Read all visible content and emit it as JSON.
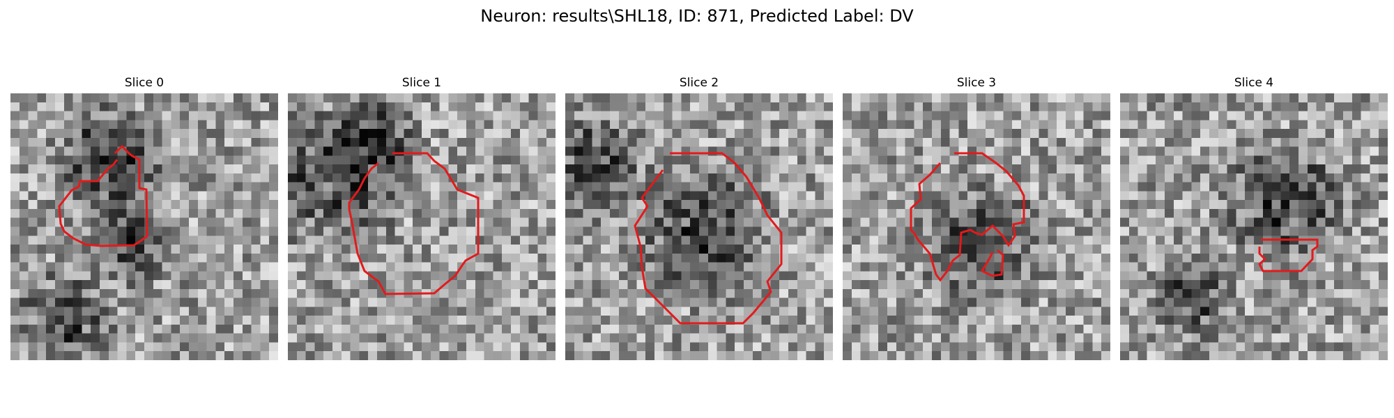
{
  "figure": {
    "title": "Neuron: results\\SHL18, ID: 871, Predicted Label: DV"
  },
  "slices": [
    {
      "title": "Slice 0"
    },
    {
      "title": "Slice 1"
    },
    {
      "title": "Slice 2"
    },
    {
      "title": "Slice 3"
    },
    {
      "title": "Slice 4"
    }
  ],
  "colors": {
    "contour": "#e31a1c",
    "background": "#ffffff"
  },
  "colormap": "gray"
}
